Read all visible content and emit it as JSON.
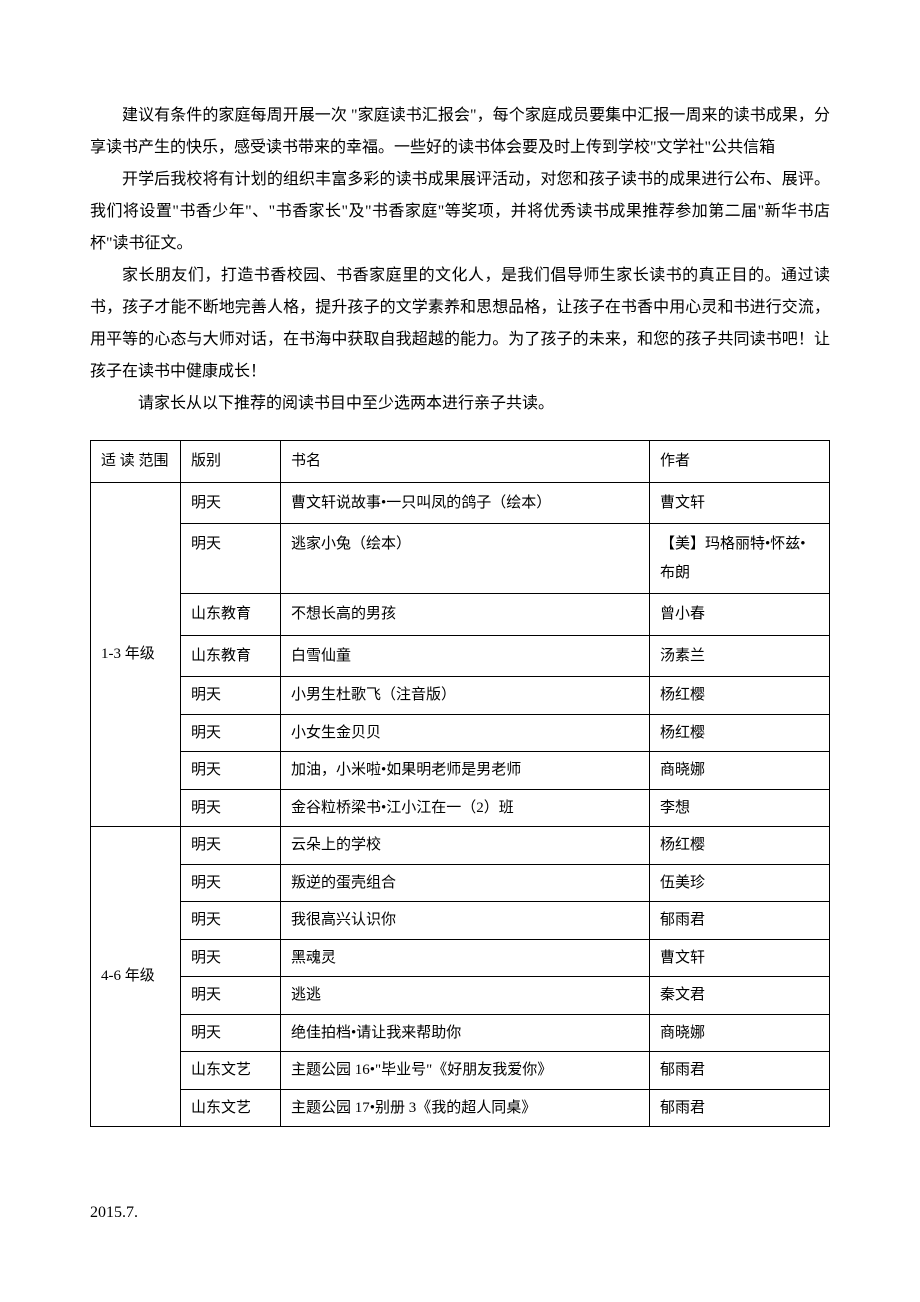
{
  "paragraphs": {
    "p1": "建议有条件的家庭每周开展一次 \"家庭读书汇报会\"，每个家庭成员要集中汇报一周来的读书成果，分享读书产生的快乐，感受读书带来的幸福。一些好的读书体会要及时上传到学校\"文学社\"公共信箱",
    "p2": "开学后我校将有计划的组织丰富多彩的读书成果展评活动，对您和孩子读书的成果进行公布、展评。我们将设置\"书香少年\"、\"书香家长\"及\"书香家庭\"等奖项，并将优秀读书成果推荐参加第二届\"新华书店杯\"读书征文。",
    "p3": "家长朋友们，打造书香校园、书香家庭里的文化人，是我们倡导师生家长读书的真正目的。通过读书，孩子才能不断地完善人格，提升孩子的文学素养和思想品格，让孩子在书香中用心灵和书进行交流，用平等的心态与大师对话，在书海中获取自我超越的能力。为了孩子的未来，和您的孩子共同读书吧！让孩子在读书中健康成长！",
    "p4": "请家长从以下推荐的阅读书目中至少选两本进行亲子共读。"
  },
  "table": {
    "headers": {
      "range": "适 读 范围",
      "publisher": "版别",
      "title": "书名",
      "author": "作者"
    },
    "group1": {
      "range": "1-3 年级",
      "rows": {
        "r0": {
          "pub": "明天",
          "title": "曹文轩说故事•一只叫凤的鸽子（绘本）",
          "author": "曹文轩"
        },
        "r1": {
          "pub": "明天",
          "title": "逃家小兔（绘本）",
          "author": "【美】玛格丽特•怀兹•布朗"
        },
        "r2": {
          "pub": "山东教育",
          "title": "不想长高的男孩",
          "author": "曾小春"
        },
        "r3": {
          "pub": "山东教育",
          "title": "白雪仙童",
          "author": "汤素兰"
        },
        "r4": {
          "pub": "明天",
          "title": "小男生杜歌飞（注音版）",
          "author": "杨红樱"
        },
        "r5": {
          "pub": "明天",
          "title": "小女生金贝贝",
          "author": "杨红樱"
        },
        "r6": {
          "pub": "明天",
          "title": "加油，小米啦•如果明老师是男老师",
          "author": "商晓娜"
        },
        "r7": {
          "pub": "明天",
          "title": "金谷粒桥梁书•江小江在一（2）班",
          "author": "李想"
        }
      }
    },
    "group2": {
      "range": "4-6 年级",
      "rows": {
        "r0": {
          "pub": "明天",
          "title": "云朵上的学校",
          "author": "杨红樱"
        },
        "r1": {
          "pub": "明天",
          "title": "叛逆的蛋壳组合",
          "author": "伍美珍"
        },
        "r2": {
          "pub": "明天",
          "title": "我很高兴认识你",
          "author": "郁雨君"
        },
        "r3": {
          "pub": "明天",
          "title": "黑魂灵",
          "author": "曹文轩"
        },
        "r4": {
          "pub": "明天",
          "title": "逃逃",
          "author": "秦文君"
        },
        "r5": {
          "pub": "明天",
          "title": "绝佳拍档•请让我来帮助你",
          "author": "商晓娜"
        },
        "r6": {
          "pub": "山东文艺",
          "title": "主题公园 16•\"毕业号\"《好朋友我爱你》",
          "author": "郁雨君"
        },
        "r7": {
          "pub": "山东文艺",
          "title": "主题公园 17•别册 3《我的超人同桌》",
          "author": "郁雨君"
        }
      }
    }
  },
  "footer": {
    "date": "2015.7."
  }
}
